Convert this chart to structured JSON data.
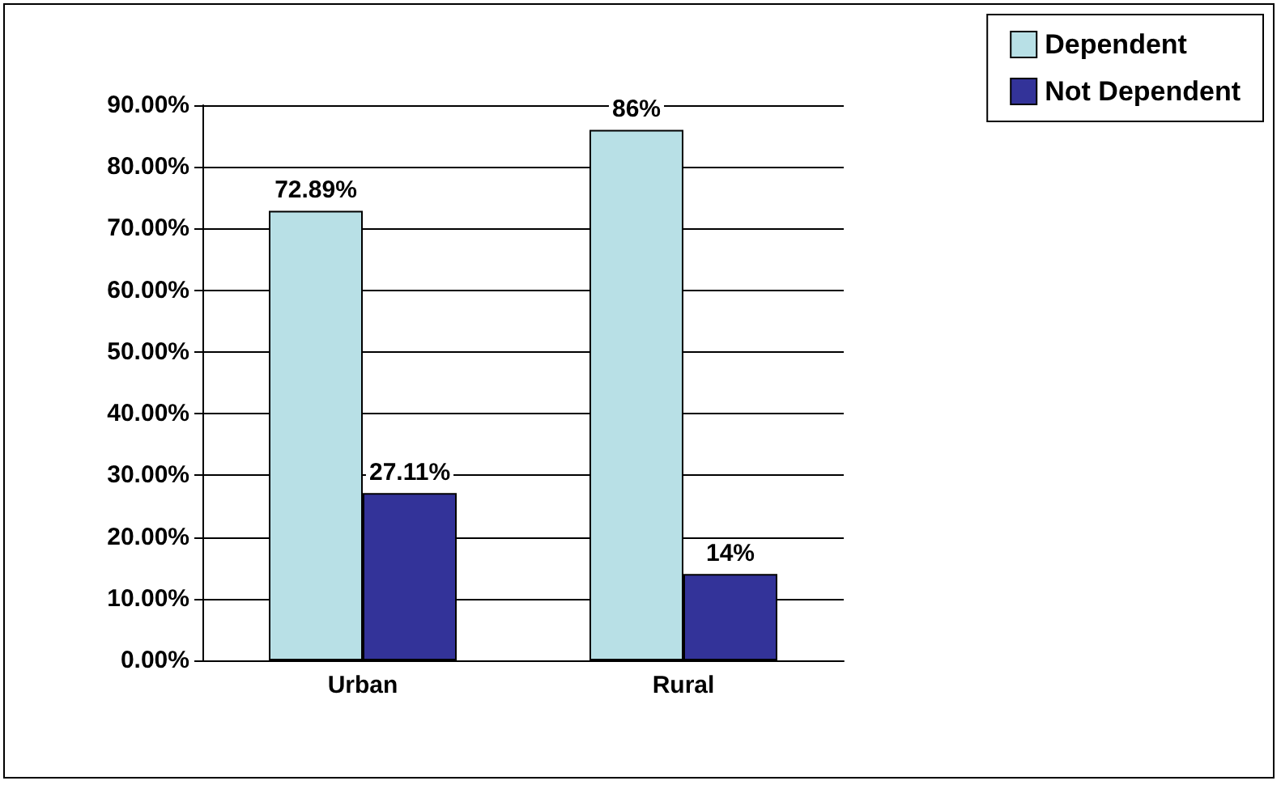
{
  "chart_data": {
    "type": "bar",
    "categories": [
      "Urban",
      "Rural"
    ],
    "series": [
      {
        "name": "Dependent",
        "color": "#b8e0e6",
        "values": [
          72.89,
          86
        ],
        "value_labels": [
          "72.89%",
          "86%"
        ]
      },
      {
        "name": "Not Dependent",
        "color": "#333399",
        "values": [
          27.11,
          14
        ],
        "value_labels": [
          "27.11%",
          "14%"
        ]
      }
    ],
    "ylim": [
      0,
      90
    ],
    "yticks": [
      {
        "value": 0,
        "label": "0.00%"
      },
      {
        "value": 10,
        "label": "10.00%"
      },
      {
        "value": 20,
        "label": "20.00%"
      },
      {
        "value": 30,
        "label": "30.00%"
      },
      {
        "value": 40,
        "label": "40.00%"
      },
      {
        "value": 50,
        "label": "50.00%"
      },
      {
        "value": 60,
        "label": "60.00%"
      },
      {
        "value": 70,
        "label": "70.00%"
      },
      {
        "value": 80,
        "label": "80.00%"
      },
      {
        "value": 90,
        "label": "90.00%"
      }
    ],
    "grid": "y",
    "legend": "top right"
  }
}
